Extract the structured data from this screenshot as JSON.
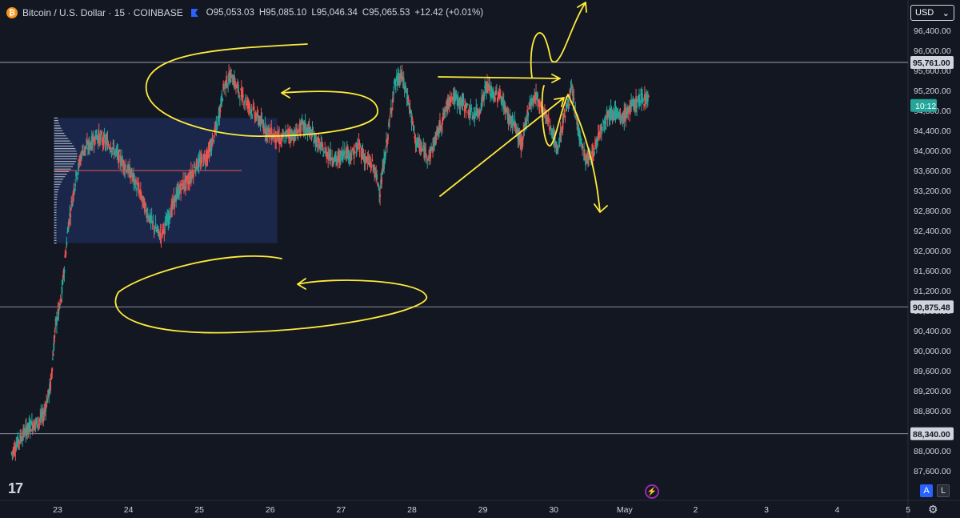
{
  "header": {
    "title": "Bitcoin / U.S. Dollar · 15 · COINBASE",
    "open_label": "O",
    "open": "95,053.03",
    "high_label": "H",
    "high": "95,085.10",
    "low_label": "L",
    "low": "95,046.34",
    "close_label": "C",
    "close": "95,065.53",
    "change": "+12.42 (+0.01%)",
    "currency": "USD",
    "btc_symbol": "₿"
  },
  "chart_data": {
    "type": "line",
    "y_ticks": [
      "96,400.00",
      "96,000.00",
      "95,600.00",
      "95,200.00",
      "94,800.00",
      "94,400.00",
      "94,000.00",
      "93,600.00",
      "93,200.00",
      "92,800.00",
      "92,400.00",
      "92,000.00",
      "91,600.00",
      "91,200.00",
      "90,800.00",
      "90,400.00",
      "90,000.00",
      "89,600.00",
      "89,200.00",
      "88,800.00",
      "88,400.00",
      "88,000.00",
      "87,600.00"
    ],
    "x_ticks": [
      "23",
      "24",
      "25",
      "26",
      "27",
      "28",
      "29",
      "30",
      "May",
      "2",
      "3",
      "4",
      "5"
    ],
    "ylim": [
      87300,
      96700
    ],
    "price_lines": [
      {
        "label": "95,761.00",
        "value": 95761
      },
      {
        "label": "90,875.48",
        "value": 90875.48
      },
      {
        "label": "88,340.00",
        "value": 88340
      }
    ],
    "current_price_label": "10:12",
    "current_price": 94900,
    "series": [
      {
        "x": [
          22.35,
          22.45,
          22.55,
          22.62,
          22.7,
          22.8,
          22.9,
          22.97,
          23.05,
          23.15,
          23.25,
          23.35,
          23.45,
          23.55,
          23.65,
          23.75,
          23.85,
          23.95,
          24.05,
          24.15,
          24.25,
          24.35,
          24.45,
          24.55,
          24.65,
          24.75,
          24.85,
          24.95,
          25.05,
          25.15,
          25.25,
          25.35,
          25.45,
          25.55,
          25.65,
          25.75,
          25.85,
          25.95,
          26.05,
          26.15,
          26.25,
          26.35,
          26.45,
          26.55,
          26.65,
          26.75,
          26.85,
          26.95,
          27.05,
          27.15,
          27.25,
          27.35,
          27.45,
          27.55,
          27.65,
          27.75,
          27.85,
          27.95,
          28.05,
          28.15,
          28.25,
          28.35,
          28.45,
          28.55,
          28.65,
          28.75,
          28.85,
          28.95,
          29.05,
          29.15,
          29.25,
          29.35,
          29.45,
          29.55,
          29.65,
          29.75,
          29.85,
          29.95,
          30.05,
          30.15,
          30.25,
          30.35,
          30.45,
          30.55,
          30.65,
          30.75,
          30.85,
          30.95,
          31.05,
          31.15,
          31.25,
          31.35
        ],
        "y": [
          87950,
          88200,
          88400,
          88500,
          88550,
          88700,
          89300,
          90500,
          91000,
          92500,
          93400,
          94000,
          94100,
          94300,
          94200,
          94100,
          93900,
          93700,
          93500,
          93200,
          92800,
          92500,
          92300,
          92600,
          93000,
          93300,
          93400,
          93700,
          93800,
          94000,
          94500,
          95300,
          95500,
          95200,
          95000,
          94800,
          94600,
          94400,
          94300,
          94200,
          94350,
          94300,
          94500,
          94400,
          94200,
          94000,
          93900,
          93800,
          94000,
          93900,
          94100,
          93800,
          93700,
          93200,
          94200,
          95300,
          95500,
          95000,
          94200,
          94000,
          93900,
          94300,
          94700,
          95100,
          95000,
          94900,
          94700,
          94800,
          95300,
          95100,
          95100,
          94700,
          94500,
          94100,
          94900,
          95100,
          94800,
          94500,
          94000,
          94700,
          95200,
          94400,
          93800,
          93900,
          94400,
          94700,
          94800,
          94600,
          94800,
          94950,
          95050,
          95065
        ]
      }
    ],
    "value_area": {
      "x_from": 22.95,
      "x_to": 26.1,
      "y_from": 92150,
      "y_to": 94650,
      "poc": 93600
    },
    "drawn_annotations": "yellow freehand loops, arrows and a triangle",
    "colors": {
      "background": "#131722",
      "up": "#26a69a",
      "down": "#ef5350",
      "annotation": "#ffeb3b",
      "value_area": "#1e2d5a",
      "grid": "#2a2e39"
    }
  },
  "footer": {
    "logo": "17",
    "auto_btn": "A",
    "log_btn": "L",
    "settings_icon": "⚙",
    "spark_icon": "⚡"
  }
}
